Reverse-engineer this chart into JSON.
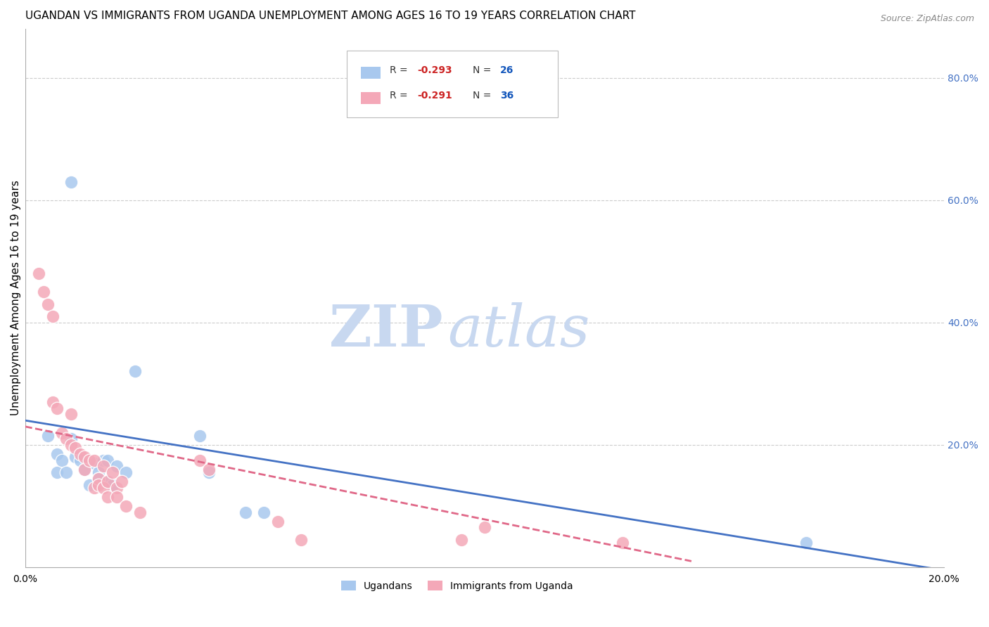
{
  "title": "UGANDAN VS IMMIGRANTS FROM UGANDA UNEMPLOYMENT AMONG AGES 16 TO 19 YEARS CORRELATION CHART",
  "source": "Source: ZipAtlas.com",
  "ylabel": "Unemployment Among Ages 16 to 19 years",
  "xlim": [
    0.0,
    0.2
  ],
  "ylim": [
    0.0,
    0.88
  ],
  "xticks": [
    0.0,
    0.04,
    0.08,
    0.12,
    0.16,
    0.2
  ],
  "xticklabels": [
    "0.0%",
    "",
    "",
    "",
    "",
    "20.0%"
  ],
  "yticks_right": [
    0.2,
    0.4,
    0.6,
    0.8
  ],
  "ytick_right_labels": [
    "20.0%",
    "40.0%",
    "60.0%",
    "80.0%"
  ],
  "legend_label1": "Ugandans",
  "legend_label2": "Immigrants from Uganda",
  "blue_color": "#A8C8EE",
  "pink_color": "#F4A8B8",
  "line_blue": "#4472C4",
  "line_pink": "#E06888",
  "watermark_zip": "ZIP",
  "watermark_atlas": "atlas",
  "watermark_color_zip": "#C8D8F0",
  "watermark_color_atlas": "#C8D8F0",
  "title_fontsize": 11,
  "axis_label_fontsize": 11,
  "tick_fontsize": 10,
  "ugandans_x": [
    0.01,
    0.005,
    0.007,
    0.007,
    0.008,
    0.009,
    0.01,
    0.011,
    0.012,
    0.013,
    0.014,
    0.015,
    0.016,
    0.016,
    0.017,
    0.018,
    0.018,
    0.019,
    0.02,
    0.022,
    0.024,
    0.038,
    0.04,
    0.048,
    0.052,
    0.17
  ],
  "ugandans_y": [
    0.63,
    0.215,
    0.185,
    0.155,
    0.175,
    0.155,
    0.21,
    0.18,
    0.175,
    0.16,
    0.135,
    0.17,
    0.155,
    0.145,
    0.175,
    0.175,
    0.14,
    0.135,
    0.165,
    0.155,
    0.32,
    0.215,
    0.155,
    0.09,
    0.09,
    0.04
  ],
  "immigrants_x": [
    0.003,
    0.004,
    0.005,
    0.006,
    0.006,
    0.007,
    0.008,
    0.009,
    0.01,
    0.01,
    0.011,
    0.012,
    0.013,
    0.013,
    0.014,
    0.015,
    0.015,
    0.016,
    0.016,
    0.017,
    0.017,
    0.018,
    0.018,
    0.019,
    0.02,
    0.02,
    0.021,
    0.022,
    0.025,
    0.038,
    0.04,
    0.055,
    0.06,
    0.095,
    0.1,
    0.13
  ],
  "immigrants_y": [
    0.48,
    0.45,
    0.43,
    0.41,
    0.27,
    0.26,
    0.22,
    0.21,
    0.25,
    0.2,
    0.195,
    0.185,
    0.18,
    0.16,
    0.175,
    0.175,
    0.13,
    0.145,
    0.135,
    0.165,
    0.13,
    0.14,
    0.115,
    0.155,
    0.13,
    0.115,
    0.14,
    0.1,
    0.09,
    0.175,
    0.16,
    0.075,
    0.045,
    0.045,
    0.065,
    0.04
  ],
  "blue_trendline_x": [
    0.0,
    0.2
  ],
  "blue_trendline_y": [
    0.24,
    -0.005
  ],
  "pink_trendline_x": [
    0.0,
    0.145
  ],
  "pink_trendline_y": [
    0.23,
    0.01
  ]
}
